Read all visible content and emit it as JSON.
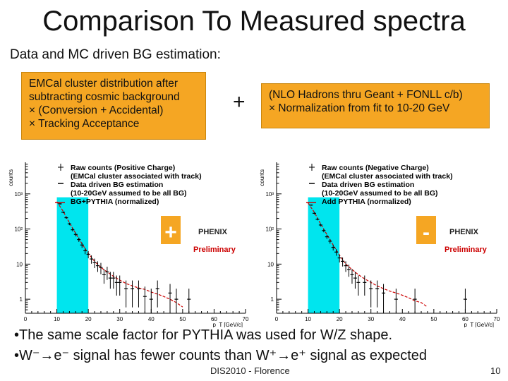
{
  "title": "Comparison To Measured spectra",
  "subtitle": "Data and MC driven BG estimation:",
  "box_left": {
    "lines": [
      "EMCal cluster distribution after",
      "subtracting cosmic background",
      "× (Conversion + Accidental)",
      "× Tracking Acceptance"
    ]
  },
  "plus_operator": "+",
  "box_right": {
    "lines": [
      "(NLO Hadrons thru Geant + FONLL c/b)",
      "× Normalization from fit to 10-20 GeV"
    ]
  },
  "bullets": [
    "•The same scale factor for PYTHIA was used for W/Z shape.",
    "•W⁻→e⁻ signal has fewer counts than W⁺→e⁺ signal as expected"
  ],
  "footer": "DIS2010 - Florence",
  "page_number": "10",
  "colors": {
    "highlight": "#00e5ee",
    "box": "#f5a623",
    "bg_curve": "#cc0000",
    "charge_sign": "#f5a623"
  },
  "chart_data": [
    {
      "type": "line",
      "panel": "positive",
      "ylabel": "counts",
      "xlabel": "p_T [GeV/c]",
      "x_ticks": [
        "0",
        "10",
        "20",
        "30",
        "40",
        "50",
        "60",
        "70"
      ],
      "y_ticks": [
        "1",
        "10",
        "10²",
        "10³"
      ],
      "xlim": [
        0,
        70
      ],
      "ylog": true,
      "highlight_range": [
        10,
        20
      ],
      "charge_sign": "+",
      "logo": "PHENIX",
      "preliminary": "Preliminary",
      "legend_position": "top-right",
      "legend": [
        "Raw counts (Positive Charge)",
        "(EMCal cluster associated with track)",
        "Data driven BG estimation",
        "(10-20GeV assumed to be all BG)",
        "BG+PYTHIA (normalized)"
      ],
      "data": {
        "x": [
          11,
          12,
          13,
          14,
          15,
          16,
          17,
          18,
          19,
          20,
          21,
          22,
          23,
          24,
          25,
          26,
          27,
          28,
          29,
          30,
          32,
          34,
          36,
          38,
          40,
          42,
          46,
          48,
          52
        ],
        "y": [
          520,
          300,
          210,
          140,
          95,
          70,
          50,
          35,
          24,
          19,
          14,
          11,
          9,
          8,
          5,
          6,
          4,
          4,
          3,
          3,
          2,
          2,
          2,
          1.2,
          1,
          2,
          1.5,
          1,
          1
        ]
      },
      "bg_pythia": {
        "x": [
          10,
          12,
          14,
          16,
          18,
          20,
          22,
          24,
          26,
          28,
          30,
          32,
          34,
          36,
          38,
          40,
          42,
          44,
          46,
          48,
          50
        ],
        "y": [
          600,
          320,
          150,
          75,
          38,
          20,
          12,
          8,
          6,
          4.5,
          3.5,
          2.8,
          2.4,
          2.1,
          1.9,
          1.6,
          1.4,
          1.2,
          1.0,
          0.8,
          0.6
        ]
      }
    },
    {
      "type": "line",
      "panel": "negative",
      "ylabel": "counts",
      "xlabel": "p_T [GeV/c]",
      "x_ticks": [
        "0",
        "10",
        "20",
        "30",
        "40",
        "50",
        "60",
        "70"
      ],
      "y_ticks": [
        "1",
        "10",
        "10²",
        "10³"
      ],
      "xlim": [
        0,
        70
      ],
      "ylog": true,
      "highlight_range": [
        10,
        20
      ],
      "charge_sign": "-",
      "logo": "PHENIX",
      "preliminary": "Preliminary",
      "legend_position": "top-right",
      "legend": [
        "Raw counts (Negative Charge)",
        "(EMCal cluster associated with track)",
        "Data driven BG estimation",
        "(10-20GeV assumed to be all BG)",
        "Add PYTHIA (normalized)"
      ],
      "data": {
        "x": [
          11,
          12,
          13,
          14,
          15,
          16,
          17,
          18,
          19,
          20,
          21,
          22,
          23,
          24,
          25,
          26,
          28,
          30,
          32,
          34,
          38,
          44,
          60
        ],
        "y": [
          480,
          280,
          190,
          130,
          90,
          60,
          45,
          30,
          22,
          15,
          12,
          9,
          7,
          5,
          4,
          3,
          3,
          2,
          2,
          1.5,
          1,
          1,
          1
        ]
      },
      "bg_pythia": {
        "x": [
          10,
          12,
          14,
          16,
          18,
          20,
          22,
          24,
          26,
          28,
          30,
          32,
          34,
          36,
          38,
          40,
          42,
          44,
          46,
          48
        ],
        "y": [
          550,
          300,
          140,
          70,
          35,
          18,
          10,
          7,
          5,
          3.8,
          3,
          2.4,
          2,
          1.7,
          1.5,
          1.3,
          1.1,
          0.9,
          0.8,
          0.6
        ]
      }
    }
  ]
}
